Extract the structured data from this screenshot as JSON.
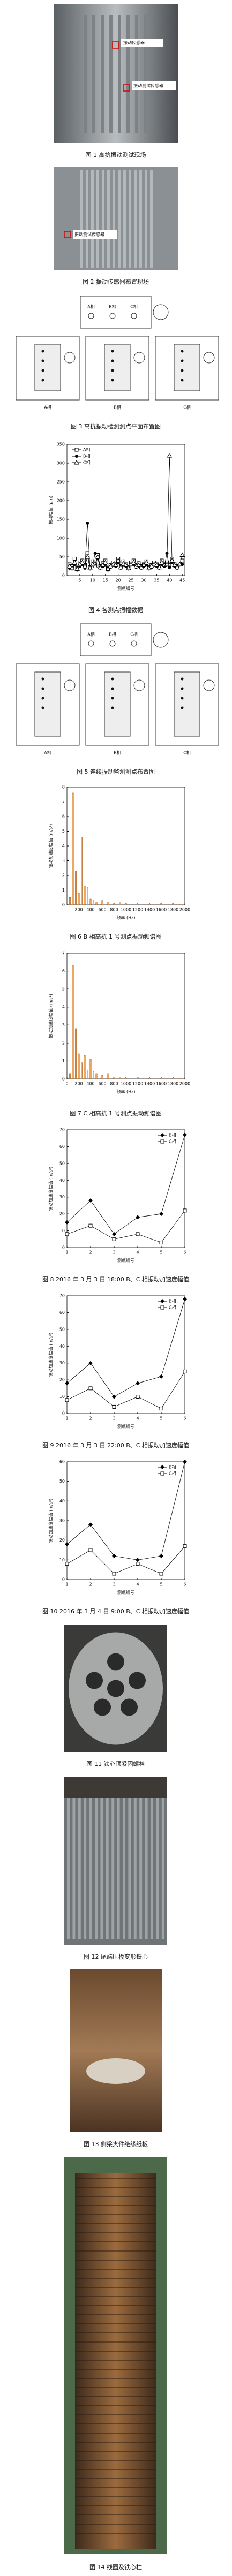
{
  "figures": [
    {
      "caption": "图 1  高抗振动测试现场",
      "labels": [
        "振动传感器",
        "振动测试传感器"
      ]
    },
    {
      "caption": "图 2  振动传感器布置现场",
      "labels": [
        "振动测试传感器"
      ]
    },
    {
      "caption": "图 3  高抗振动检测测点平面布置图",
      "labels": [
        "A相",
        "B相",
        "C相",
        "A相",
        "B相",
        "C相"
      ]
    },
    {
      "caption": "图 5  连续振动监测测点布置图",
      "labels": [
        "A相",
        "B相",
        "C相",
        "A相",
        "B相",
        "C相"
      ]
    },
    {
      "caption": "图 11  铁心顶紧固螺栓"
    },
    {
      "caption": "图 12  尾端压板变形铁心"
    },
    {
      "caption": "图 13  侧梁夹件绝缘纸板"
    },
    {
      "caption": "图 14  线圈及铁心柱"
    }
  ],
  "chart_data": [
    {
      "type": "line",
      "caption": "图 4  各测点振幅数据",
      "xlabel": "测点编号",
      "ylabel": "振动幅值 (μm)",
      "x": [
        1,
        2,
        3,
        4,
        5,
        6,
        7,
        8,
        9,
        10,
        11,
        12,
        13,
        14,
        15,
        16,
        17,
        18,
        19,
        20,
        21,
        22,
        23,
        24,
        25,
        26,
        27,
        28,
        29,
        30,
        31,
        32,
        33,
        34,
        35,
        36,
        37,
        38,
        39,
        40,
        41,
        42,
        43,
        44,
        45
      ],
      "xlim": [
        0,
        46
      ],
      "xticks": [
        5,
        10,
        15,
        20,
        25,
        30,
        35,
        40,
        45
      ],
      "ylim": [
        0,
        350
      ],
      "yticks": [
        0,
        50,
        100,
        150,
        200,
        250,
        300,
        350
      ],
      "legend": "top-left",
      "series": [
        {
          "name": "A相",
          "color": "#000000",
          "marker": "square",
          "values": [
            30,
            25,
            45,
            20,
            35,
            40,
            28,
            60,
            22,
            38,
            30,
            55,
            25,
            33,
            40,
            20,
            28,
            35,
            30,
            45,
            25,
            38,
            30,
            22,
            35,
            40,
            28,
            33,
            25,
            30,
            38,
            22,
            28,
            35,
            30,
            25,
            40,
            30,
            35,
            28,
            45,
            30,
            25,
            35,
            40
          ]
        },
        {
          "name": "B相",
          "color": "#000000",
          "marker": "circle",
          "values": [
            20,
            18,
            30,
            15,
            25,
            30,
            20,
            140,
            18,
            28,
            60,
            45,
            20,
            25,
            30,
            15,
            22,
            28,
            25,
            35,
            20,
            30,
            25,
            18,
            28,
            30,
            22,
            25,
            20,
            25,
            30,
            18,
            22,
            28,
            25,
            20,
            30,
            25,
            60,
            22,
            35,
            25,
            20,
            28,
            30
          ]
        },
        {
          "name": "C相",
          "color": "#000000",
          "marker": "triangle",
          "values": [
            25,
            20,
            35,
            18,
            30,
            35,
            25,
            50,
            20,
            30,
            25,
            50,
            22,
            28,
            35,
            18,
            25,
            30,
            28,
            40,
            22,
            32,
            28,
            20,
            30,
            35,
            25,
            28,
            22,
            28,
            35,
            20,
            25,
            30,
            28,
            22,
            35,
            28,
            30,
            320,
            40,
            28,
            22,
            30,
            55
          ]
        }
      ]
    },
    {
      "type": "bar",
      "caption": "图 6  B 相高抗 1 号测点振动频谱图",
      "xlabel": "频率 (Hz)",
      "ylabel": "振动加速度幅值 (m/s²)",
      "color": "#f2b06a",
      "x": [
        50,
        100,
        150,
        200,
        250,
        300,
        350,
        400,
        450,
        500,
        600,
        700,
        800,
        900,
        1000,
        1200,
        1400,
        1600,
        1800,
        1900
      ],
      "values": [
        0.5,
        7.6,
        2.3,
        0.8,
        4.6,
        1.3,
        1.2,
        0.4,
        0.3,
        0.2,
        0.3,
        0.2,
        0.1,
        0.15,
        0.1,
        0.05,
        0.05,
        0.1,
        0.1,
        0.05
      ],
      "xlim": [
        0,
        2000
      ],
      "xticks": [
        200,
        400,
        600,
        800,
        1000,
        1200,
        1400,
        1600,
        1800,
        2000
      ],
      "ylim": [
        0,
        8
      ],
      "yticks": [
        0,
        1,
        2,
        3,
        4,
        5,
        6,
        7,
        8
      ]
    },
    {
      "type": "bar",
      "caption": "图 7  C 相高抗 1 号测点振动频谱图",
      "xlabel": "频率 (Hz)",
      "ylabel": "振动加速度幅值 (m/s²)",
      "color": "#f2b06a",
      "x": [
        50,
        100,
        150,
        200,
        250,
        300,
        350,
        400,
        450,
        500,
        600,
        700,
        800,
        900,
        1000,
        1200,
        1400,
        1600,
        1800,
        1900
      ],
      "values": [
        0.3,
        6.3,
        2.8,
        1.4,
        0.9,
        1.3,
        0.5,
        1.1,
        0.4,
        0.3,
        0.2,
        0.3,
        0.1,
        0.1,
        0.05,
        0.1,
        0.05,
        0.05,
        0.05,
        0.05
      ],
      "xlim": [
        0,
        2000
      ],
      "xticks": [
        0,
        200,
        400,
        600,
        800,
        1000,
        1200,
        1400,
        1600,
        1800,
        2000
      ],
      "ylim": [
        0,
        7
      ],
      "yticks": [
        0,
        1,
        2,
        3,
        4,
        5,
        6,
        7
      ]
    },
    {
      "type": "line",
      "caption": "图 8  2016 年 3 月 3 日 18:00 B、C 相振动加速度幅值",
      "xlabel": "测点编号",
      "ylabel": "振动加速度幅值 (m/s²)",
      "x": [
        1,
        2,
        3,
        4,
        5,
        6
      ],
      "xlim": [
        1,
        6
      ],
      "xticks": [
        1,
        2,
        3,
        4,
        5,
        6
      ],
      "ylim": [
        0,
        70
      ],
      "yticks": [
        0,
        10,
        20,
        30,
        40,
        50,
        60,
        70
      ],
      "legend": "top-right",
      "series": [
        {
          "name": "B相",
          "color": "#000000",
          "marker": "diamond",
          "values": [
            15,
            28,
            8,
            18,
            20,
            67
          ]
        },
        {
          "name": "C相",
          "color": "#000000",
          "marker": "square",
          "values": [
            8,
            13,
            5,
            8,
            3,
            22
          ]
        }
      ]
    },
    {
      "type": "line",
      "caption": "图 9  2016 年 3 月 3 日 22:00 B、C 相振动加速度幅值",
      "xlabel": "测点编号",
      "ylabel": "振动加速度幅值 (m/s²)",
      "x": [
        1,
        2,
        3,
        4,
        5,
        6
      ],
      "xlim": [
        1,
        6
      ],
      "xticks": [
        1,
        2,
        3,
        4,
        5,
        6
      ],
      "ylim": [
        0,
        70
      ],
      "yticks": [
        0,
        10,
        20,
        30,
        40,
        50,
        60,
        70
      ],
      "legend": "top-right",
      "series": [
        {
          "name": "B相",
          "color": "#000000",
          "marker": "diamond",
          "values": [
            18,
            30,
            10,
            18,
            22,
            68
          ]
        },
        {
          "name": "C相",
          "color": "#000000",
          "marker": "square",
          "values": [
            8,
            15,
            4,
            10,
            3,
            25
          ]
        }
      ]
    },
    {
      "type": "line",
      "caption": "图 10  2016 年 3 月 4 日 9:00 B、C 相振动加速度幅值",
      "xlabel": "测点编号",
      "ylabel": "振动加速度幅值 (m/s²)",
      "x": [
        1,
        2,
        3,
        4,
        5,
        6
      ],
      "xlim": [
        1,
        6
      ],
      "xticks": [
        1,
        2,
        3,
        4,
        5,
        6
      ],
      "ylim": [
        0,
        60
      ],
      "yticks": [
        0,
        10,
        20,
        30,
        40,
        50,
        60
      ],
      "legend": "top-right",
      "series": [
        {
          "name": "B相",
          "color": "#000000",
          "marker": "diamond",
          "values": [
            18,
            28,
            12,
            10,
            12,
            60
          ]
        },
        {
          "name": "C相",
          "color": "#000000",
          "marker": "square",
          "values": [
            8,
            15,
            3,
            8,
            3,
            17
          ]
        }
      ]
    }
  ]
}
